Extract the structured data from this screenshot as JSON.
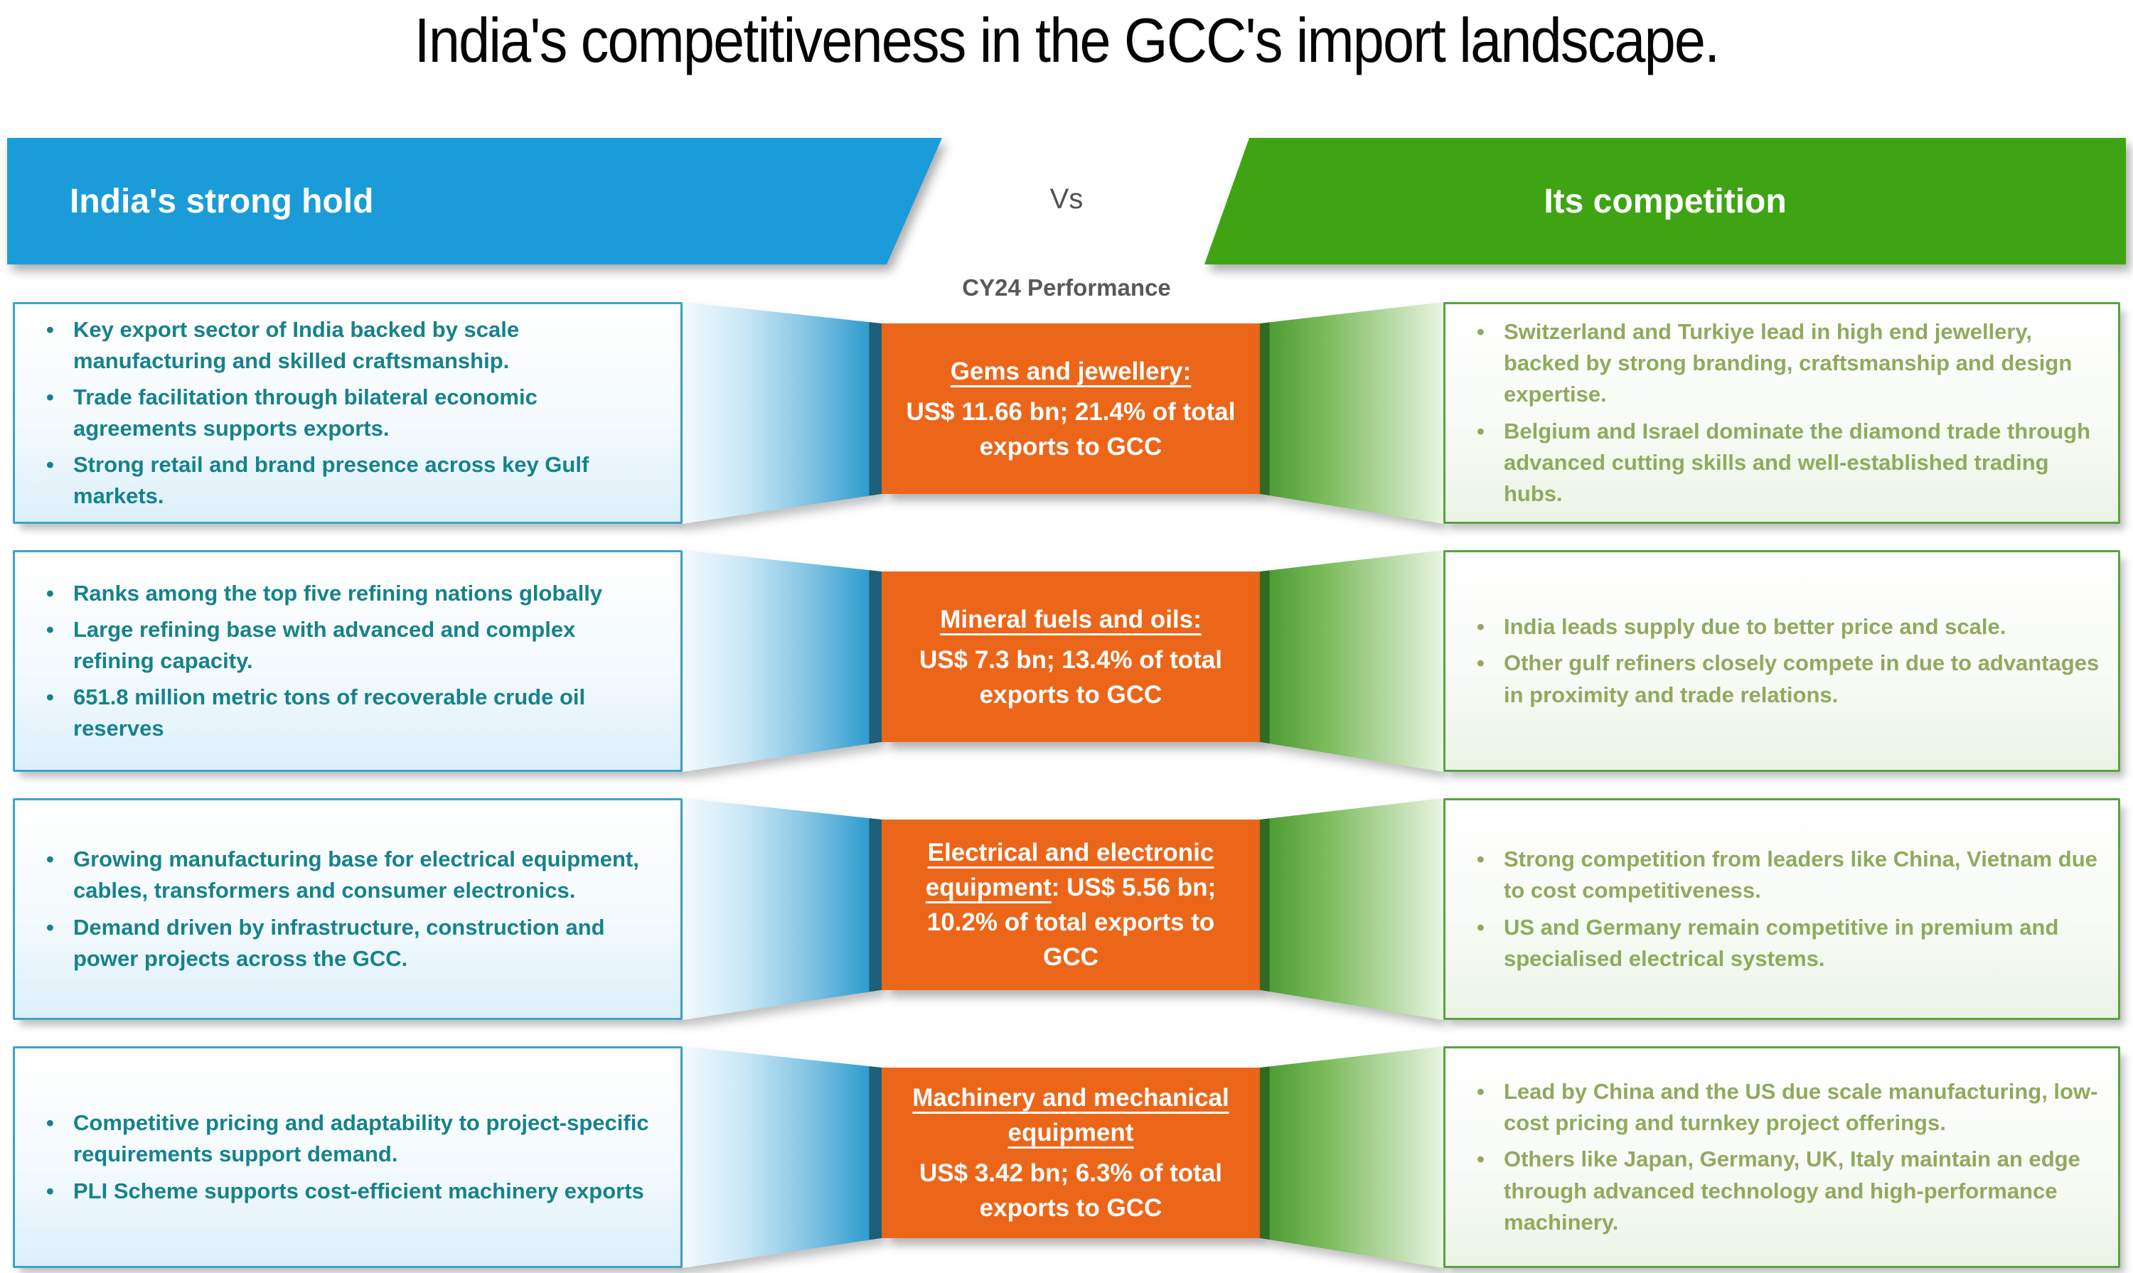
{
  "title": "India's competitiveness in the GCC's import landscape.",
  "header": {
    "left_banner": "India's strong hold",
    "vs": "Vs",
    "right_banner": "Its competition",
    "period_label": "CY24 Performance"
  },
  "colors": {
    "banner_blue": "#1B9CD9",
    "banner_green": "#3FA414",
    "category_orange": "#EC661A",
    "india_text_teal": "#16828C",
    "competition_text_olive": "#8FAA5E",
    "india_box_border": "#3EA2C7",
    "competition_box_border": "#56A440"
  },
  "rows": [
    {
      "india": [
        "Key export sector of India backed by scale manufacturing and skilled craftsmanship.",
        "Trade facilitation through bilateral economic agreements supports exports.",
        "Strong retail and brand presence across key Gulf markets."
      ],
      "center": {
        "title": "Gems and jewellery:",
        "body": "US$ 11.66 bn; 21.4% of total exports to GCC"
      },
      "competition": [
        "Switzerland and Turkiye lead in high end jewellery, backed by strong branding, craftsmanship and design expertise.",
        "Belgium and Israel dominate the diamond trade through advanced cutting skills and well-established trading hubs."
      ]
    },
    {
      "india": [
        "Ranks among the top five refining nations globally",
        "Large refining base with advanced and complex refining capacity.",
        "651.8 million metric tons of recoverable crude oil reserves"
      ],
      "center": {
        "title": "Mineral fuels and oils:",
        "body": "US$ 7.3 bn; 13.4% of total exports to GCC"
      },
      "competition": [
        "India leads supply due to better price and scale.",
        "Other gulf refiners closely compete in due to advantages in proximity and trade relations."
      ]
    },
    {
      "india": [
        "Growing manufacturing base for electrical equipment, cables, transformers and consumer electronics.",
        "Demand driven by infrastructure, construction and power projects across the GCC."
      ],
      "center": {
        "title": "Electrical and electronic equipment",
        "body": ": US$ 5.56 bn; 10.2% of total exports to GCC"
      },
      "competition": [
        "Strong competition from leaders like China, Vietnam due to cost competitiveness.",
        "US and Germany remain competitive in premium and specialised electrical systems."
      ]
    },
    {
      "india": [
        "Competitive pricing and adaptability to project-specific requirements support demand.",
        "PLI Scheme supports cost-efficient machinery exports"
      ],
      "center": {
        "title": "Machinery and mechanical equipment",
        "body": "US$ 3.42 bn; 6.3% of total exports to GCC"
      },
      "competition": [
        "Lead by China and the US due scale manufacturing, low-cost pricing and turnkey project offerings.",
        "Others like Japan, Germany, UK, Italy maintain an edge through advanced technology and high-performance machinery."
      ]
    }
  ]
}
